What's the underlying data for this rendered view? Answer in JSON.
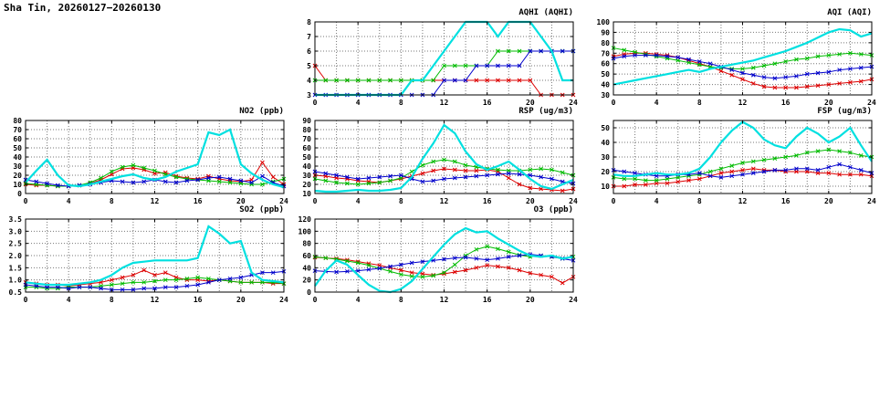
{
  "page_title": "Sha Tin, 20260127−20260130",
  "x": {
    "min": 0,
    "max": 24,
    "step": 1,
    "minor_step": 2,
    "ticks": [
      0,
      4,
      8,
      12,
      16,
      20,
      24
    ],
    "ticklabels": [
      "0",
      "4",
      "8",
      "12",
      "16",
      "20",
      "24"
    ]
  },
  "colors": {
    "red": "#dd0000",
    "green": "#00bb00",
    "blue": "#0000cc",
    "cyan": "#00e0e0"
  },
  "chart_data": [
    {
      "id": "aqhi",
      "type": "line",
      "title": "AQHI (AQHI)",
      "xlabel": "",
      "ylabel": "",
      "ylim": [
        3,
        8
      ],
      "yticks": [
        3,
        4,
        5,
        6,
        7,
        8
      ],
      "yticklabels": [
        "3",
        "4",
        "5",
        "6",
        "7",
        "8"
      ],
      "grid": true,
      "series": [
        {
          "name": "red",
          "color": "#dd0000",
          "width": 1,
          "marker": true,
          "values": [
            5,
            4,
            4,
            4,
            4,
            4,
            4,
            4,
            4,
            4,
            4,
            4,
            4,
            4,
            4,
            4,
            4,
            4,
            4,
            4,
            4,
            3,
            3,
            3,
            3
          ]
        },
        {
          "name": "green",
          "color": "#00bb00",
          "width": 1,
          "marker": true,
          "values": [
            4,
            4,
            4,
            4,
            4,
            4,
            4,
            4,
            4,
            4,
            4,
            4,
            5,
            5,
            5,
            5,
            5,
            6,
            6,
            6,
            6,
            6,
            6,
            6,
            6
          ]
        },
        {
          "name": "blue",
          "color": "#0000cc",
          "width": 1,
          "marker": true,
          "values": [
            3,
            3,
            3,
            3,
            3,
            3,
            3,
            3,
            3,
            3,
            3,
            3,
            4,
            4,
            4,
            5,
            5,
            5,
            5,
            5,
            6,
            6,
            6,
            6,
            6
          ]
        },
        {
          "name": "cyan",
          "color": "#00e0e0",
          "width": 2.2,
          "marker": false,
          "values": [
            3,
            3,
            3,
            3,
            3,
            3,
            3,
            3,
            3,
            4,
            4,
            5,
            6,
            7,
            8,
            8,
            8,
            7,
            8,
            8,
            8,
            7,
            6,
            4,
            4
          ]
        }
      ]
    },
    {
      "id": "aqi",
      "type": "line",
      "title": "AQI (AQI)",
      "xlabel": "",
      "ylabel": "",
      "ylim": [
        30,
        100
      ],
      "yticks": [
        30,
        40,
        50,
        60,
        70,
        80,
        90,
        100
      ],
      "yticklabels": [
        "30",
        "40",
        "50",
        "60",
        "70",
        "80",
        "90",
        "100"
      ],
      "grid": true,
      "series": [
        {
          "name": "red",
          "color": "#dd0000",
          "width": 1,
          "marker": true,
          "values": [
            67,
            69,
            70,
            70,
            69,
            68,
            66,
            63,
            60,
            57,
            53,
            49,
            45,
            41,
            38,
            37,
            37,
            37,
            38,
            39,
            40,
            41,
            42,
            43,
            45
          ]
        },
        {
          "name": "green",
          "color": "#00bb00",
          "width": 1,
          "marker": true,
          "values": [
            75,
            73,
            71,
            69,
            67,
            65,
            63,
            61,
            59,
            57,
            56,
            55,
            55,
            56,
            58,
            60,
            62,
            64,
            65,
            67,
            68,
            69,
            70,
            69,
            68
          ]
        },
        {
          "name": "blue",
          "color": "#0000cc",
          "width": 1,
          "marker": true,
          "values": [
            65,
            67,
            68,
            68,
            68,
            67,
            66,
            64,
            62,
            60,
            57,
            54,
            51,
            49,
            47,
            46,
            47,
            48,
            50,
            51,
            52,
            54,
            55,
            56,
            57
          ]
        },
        {
          "name": "cyan",
          "color": "#00e0e0",
          "width": 2.2,
          "marker": false,
          "values": [
            40,
            42,
            44,
            46,
            48,
            50,
            52,
            54,
            52,
            55,
            57,
            59,
            61,
            63,
            66,
            69,
            72,
            76,
            80,
            85,
            90,
            93,
            92,
            86,
            89
          ]
        }
      ]
    },
    {
      "id": "no2",
      "type": "line",
      "title": "NO2 (ppb)",
      "xlabel": "",
      "ylabel": "",
      "ylim": [
        0,
        80
      ],
      "yticks": [
        0,
        10,
        20,
        30,
        40,
        50,
        60,
        70,
        80
      ],
      "yticklabels": [
        "0",
        "10",
        "20",
        "30",
        "40",
        "50",
        "60",
        "70",
        "80"
      ],
      "grid": true,
      "series": [
        {
          "name": "red",
          "color": "#dd0000",
          "width": 1,
          "marker": true,
          "values": [
            10,
            9,
            9,
            8,
            8,
            9,
            11,
            15,
            21,
            27,
            28,
            26,
            22,
            23,
            19,
            17,
            16,
            19,
            16,
            14,
            13,
            15,
            34,
            18,
            10
          ]
        },
        {
          "name": "green",
          "color": "#00bb00",
          "width": 1,
          "marker": true,
          "values": [
            11,
            10,
            9,
            8,
            8,
            9,
            12,
            17,
            24,
            29,
            31,
            28,
            25,
            21,
            18,
            16,
            15,
            14,
            13,
            12,
            11,
            10,
            10,
            13,
            16
          ]
        },
        {
          "name": "blue",
          "color": "#0000cc",
          "width": 1,
          "marker": true,
          "values": [
            15,
            13,
            11,
            9,
            8,
            9,
            10,
            12,
            14,
            13,
            12,
            13,
            15,
            13,
            12,
            14,
            15,
            17,
            18,
            16,
            14,
            12,
            19,
            12,
            8
          ]
        },
        {
          "name": "cyan",
          "color": "#00e0e0",
          "width": 2.2,
          "marker": false,
          "values": [
            12,
            25,
            37,
            20,
            9,
            8,
            10,
            13,
            16,
            19,
            21,
            17,
            15,
            18,
            24,
            28,
            32,
            67,
            64,
            70,
            32,
            22,
            15,
            10,
            7
          ]
        }
      ]
    },
    {
      "id": "rsp",
      "type": "line",
      "title": "RSP (ug/m3)",
      "xlabel": "",
      "ylabel": "",
      "ylim": [
        10,
        90
      ],
      "yticks": [
        10,
        20,
        30,
        40,
        50,
        60,
        70,
        80,
        90
      ],
      "yticklabels": [
        "10",
        "20",
        "30",
        "40",
        "50",
        "60",
        "70",
        "80",
        "90"
      ],
      "grid": true,
      "series": [
        {
          "name": "red",
          "color": "#dd0000",
          "width": 1,
          "marker": true,
          "values": [
            30,
            29,
            27,
            26,
            24,
            23,
            22,
            24,
            26,
            29,
            32,
            35,
            37,
            36,
            35,
            35,
            36,
            34,
            27,
            20,
            16,
            15,
            14,
            13,
            15
          ]
        },
        {
          "name": "green",
          "color": "#00bb00",
          "width": 1,
          "marker": true,
          "values": [
            26,
            24,
            22,
            21,
            20,
            21,
            22,
            24,
            27,
            34,
            41,
            45,
            47,
            45,
            41,
            39,
            37,
            36,
            35,
            35,
            36,
            37,
            36,
            33,
            30
          ]
        },
        {
          "name": "blue",
          "color": "#0000cc",
          "width": 1,
          "marker": true,
          "values": [
            34,
            32,
            30,
            28,
            26,
            27,
            28,
            29,
            30,
            26,
            23,
            24,
            26,
            27,
            28,
            29,
            30,
            31,
            32,
            31,
            30,
            28,
            26,
            23,
            21
          ]
        },
        {
          "name": "cyan",
          "color": "#00e0e0",
          "width": 2.2,
          "marker": false,
          "values": [
            13,
            12,
            12,
            13,
            14,
            13,
            13,
            14,
            16,
            28,
            48,
            65,
            85,
            76,
            56,
            42,
            36,
            40,
            45,
            36,
            26,
            18,
            15,
            20,
            25
          ]
        }
      ]
    },
    {
      "id": "fsp",
      "type": "line",
      "title": "FSP (ug/m3)",
      "xlabel": "",
      "ylabel": "",
      "ylim": [
        5,
        55
      ],
      "yticks": [
        10,
        20,
        30,
        40,
        50
      ],
      "yticklabels": [
        "10",
        "20",
        "30",
        "40",
        "50"
      ],
      "grid": true,
      "series": [
        {
          "name": "red",
          "color": "#dd0000",
          "width": 1,
          "marker": true,
          "values": [
            10,
            10,
            11,
            11,
            12,
            12,
            13,
            14,
            15,
            17,
            19,
            20,
            21,
            22,
            21,
            21,
            20,
            20,
            20,
            19,
            19,
            18,
            18,
            18,
            17
          ]
        },
        {
          "name": "green",
          "color": "#00bb00",
          "width": 1,
          "marker": true,
          "values": [
            16,
            15,
            15,
            14,
            14,
            15,
            16,
            17,
            18,
            20,
            22,
            24,
            26,
            27,
            28,
            29,
            30,
            31,
            33,
            34,
            35,
            34,
            33,
            31,
            30
          ]
        },
        {
          "name": "blue",
          "color": "#0000cc",
          "width": 1,
          "marker": true,
          "values": [
            21,
            20,
            19,
            18,
            17,
            17,
            18,
            18,
            19,
            17,
            16,
            17,
            18,
            19,
            20,
            21,
            21,
            22,
            22,
            21,
            23,
            25,
            23,
            21,
            19
          ]
        },
        {
          "name": "cyan",
          "color": "#00e0e0",
          "width": 2.2,
          "marker": false,
          "values": [
            18,
            17,
            17,
            18,
            19,
            18,
            18,
            19,
            22,
            30,
            40,
            48,
            54,
            50,
            42,
            38,
            36,
            44,
            50,
            46,
            40,
            44,
            50,
            38,
            27
          ]
        }
      ]
    },
    {
      "id": "so2",
      "type": "line",
      "title": "SO2 (ppb)",
      "xlabel": "",
      "ylabel": "",
      "ylim": [
        0.5,
        3.5
      ],
      "yticks": [
        0.5,
        1.0,
        1.5,
        2.0,
        2.5,
        3.0,
        3.5
      ],
      "yticklabels": [
        "0.5",
        "1.0",
        "1.5",
        "2.0",
        "2.5",
        "3.0",
        "3.5"
      ],
      "grid": true,
      "series": [
        {
          "name": "red",
          "color": "#dd0000",
          "width": 1,
          "marker": true,
          "values": [
            0.9,
            0.85,
            0.8,
            0.8,
            0.75,
            0.8,
            0.85,
            0.9,
            1.0,
            1.1,
            1.2,
            1.4,
            1.2,
            1.3,
            1.1,
            1.0,
            1.0,
            0.95,
            1.0,
            0.95,
            0.9,
            0.9,
            0.9,
            0.85,
            0.85
          ]
        },
        {
          "name": "green",
          "color": "#00bb00",
          "width": 1,
          "marker": true,
          "values": [
            0.7,
            0.7,
            0.65,
            0.65,
            0.7,
            0.7,
            0.7,
            0.75,
            0.8,
            0.85,
            0.9,
            0.9,
            0.95,
            1.0,
            1.0,
            1.05,
            1.1,
            1.05,
            1.0,
            0.95,
            0.9,
            0.9,
            0.9,
            0.9,
            0.85
          ]
        },
        {
          "name": "blue",
          "color": "#0000cc",
          "width": 1,
          "marker": true,
          "values": [
            0.8,
            0.75,
            0.7,
            0.7,
            0.65,
            0.7,
            0.7,
            0.65,
            0.6,
            0.6,
            0.6,
            0.65,
            0.65,
            0.7,
            0.7,
            0.75,
            0.8,
            0.9,
            1.0,
            1.05,
            1.1,
            1.2,
            1.3,
            1.3,
            1.35
          ]
        },
        {
          "name": "cyan",
          "color": "#00e0e0",
          "width": 2.2,
          "marker": false,
          "values": [
            0.9,
            0.85,
            0.8,
            0.8,
            0.8,
            0.85,
            0.9,
            1.0,
            1.2,
            1.5,
            1.7,
            1.75,
            1.8,
            1.8,
            1.8,
            1.8,
            1.9,
            3.2,
            2.9,
            2.5,
            2.6,
            1.3,
            1.0,
            0.95,
            0.9
          ]
        }
      ]
    },
    {
      "id": "o3",
      "type": "line",
      "title": "O3 (ppb)",
      "xlabel": "",
      "ylabel": "",
      "ylim": [
        0,
        120
      ],
      "yticks": [
        0,
        20,
        40,
        60,
        80,
        100,
        120
      ],
      "yticklabels": [
        "0",
        "20",
        "40",
        "60",
        "80",
        "100",
        "120"
      ],
      "grid": true,
      "series": [
        {
          "name": "red",
          "color": "#dd0000",
          "width": 1,
          "marker": true,
          "values": [
            57,
            56,
            55,
            53,
            50,
            47,
            44,
            40,
            36,
            32,
            30,
            28,
            30,
            33,
            36,
            40,
            44,
            42,
            40,
            36,
            31,
            28,
            25,
            15,
            25
          ]
        },
        {
          "name": "green",
          "color": "#00bb00",
          "width": 1,
          "marker": true,
          "values": [
            58,
            56,
            54,
            51,
            48,
            44,
            39,
            34,
            29,
            26,
            25,
            27,
            32,
            45,
            60,
            70,
            75,
            71,
            66,
            61,
            58,
            60,
            58,
            55,
            58
          ]
        },
        {
          "name": "blue",
          "color": "#0000cc",
          "width": 1,
          "marker": true,
          "values": [
            35,
            34,
            33,
            34,
            35,
            37,
            39,
            42,
            45,
            48,
            50,
            52,
            54,
            56,
            57,
            55,
            53,
            55,
            58,
            60,
            62,
            60,
            58,
            55,
            52
          ]
        },
        {
          "name": "cyan",
          "color": "#00e0e0",
          "width": 2.2,
          "marker": false,
          "values": [
            10,
            35,
            52,
            45,
            28,
            12,
            2,
            0,
            5,
            18,
            38,
            58,
            78,
            95,
            105,
            98,
            100,
            88,
            78,
            68,
            60,
            58,
            60,
            55,
            58
          ]
        }
      ]
    }
  ]
}
